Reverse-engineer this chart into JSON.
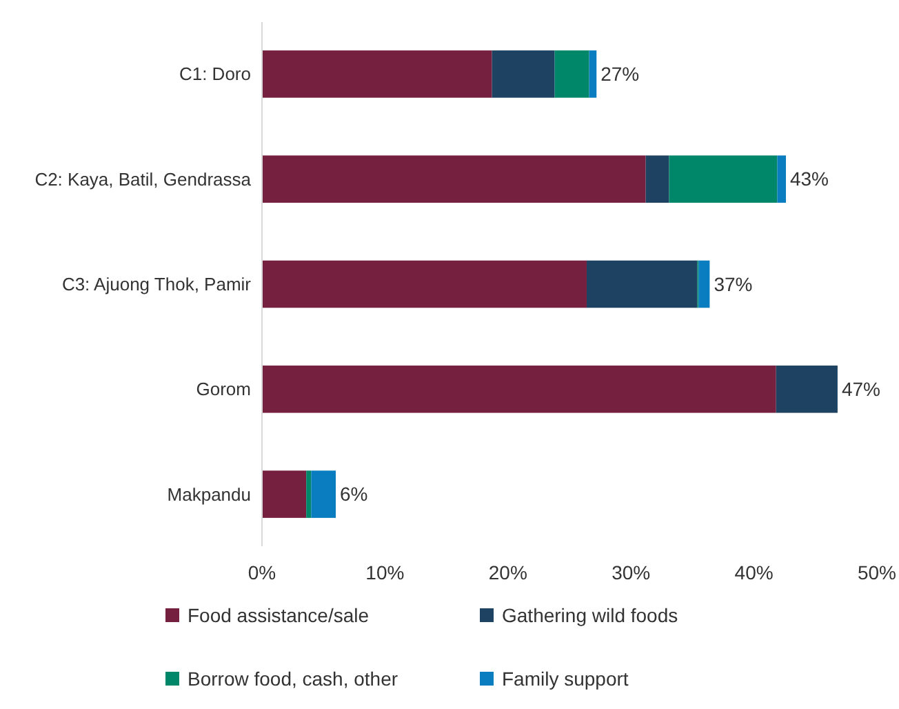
{
  "chart_data": {
    "type": "bar",
    "orientation": "horizontal",
    "stacked": true,
    "categories": [
      "C1: Doro",
      "C2: Kaya, Batil, Gendrassa",
      "C3: Ajuong Thok, Pamir",
      "Gorom",
      "Makpandu"
    ],
    "series": [
      {
        "name": "Food assistance/sale",
        "color": "#76203f",
        "values": [
          18.7,
          31.2,
          26.4,
          41.8,
          3.6
        ]
      },
      {
        "name": "Gathering wild foods",
        "color": "#1d4262",
        "values": [
          5.1,
          1.9,
          9.0,
          5.0,
          0
        ]
      },
      {
        "name": "Borrow food, cash, other",
        "color": "#008769",
        "values": [
          2.8,
          8.8,
          0.1,
          0,
          0.4
        ]
      },
      {
        "name": "Family support",
        "color": "#0a7dc0",
        "values": [
          0.6,
          0.7,
          0.9,
          0,
          2.0
        ]
      }
    ],
    "totals": [
      "27%",
      "43%",
      "37%",
      "47%",
      "6%"
    ],
    "xlim": [
      0,
      50
    ],
    "xticks": [
      {
        "value": 0,
        "label": "0%"
      },
      {
        "value": 10,
        "label": "10%"
      },
      {
        "value": 20,
        "label": "20%"
      },
      {
        "value": 30,
        "label": "30%"
      },
      {
        "value": 40,
        "label": "40%"
      },
      {
        "value": 50,
        "label": "50%"
      }
    ],
    "grid": false,
    "legend": "bottom"
  }
}
